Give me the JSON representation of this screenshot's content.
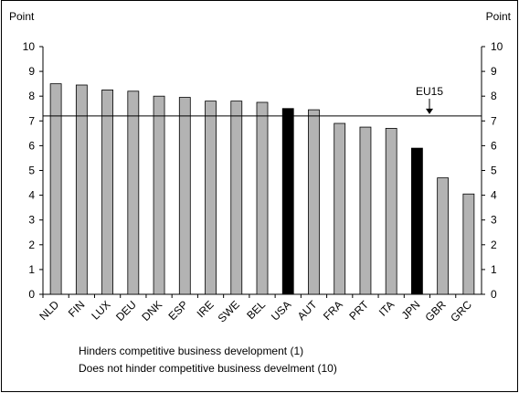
{
  "chart_data": {
    "type": "bar",
    "y_label": "Point",
    "y2_label": "Point",
    "categories": [
      "NLD",
      "FIN",
      "LUX",
      "DEU",
      "DNK",
      "ESP",
      "IRE",
      "SWE",
      "BEL",
      "USA",
      "AUT",
      "FRA",
      "PRT",
      "ITA",
      "JPN",
      "GBR",
      "GRC"
    ],
    "values": [
      8.5,
      8.45,
      8.25,
      8.2,
      8.0,
      7.95,
      7.8,
      7.8,
      7.75,
      7.5,
      7.45,
      6.9,
      6.75,
      6.7,
      5.9,
      4.7,
      4.05
    ],
    "colors": [
      "#b3b3b3",
      "#b3b3b3",
      "#b3b3b3",
      "#b3b3b3",
      "#b3b3b3",
      "#b3b3b3",
      "#b3b3b3",
      "#b3b3b3",
      "#b3b3b3",
      "#000000",
      "#b3b3b3",
      "#b3b3b3",
      "#b3b3b3",
      "#b3b3b3",
      "#000000",
      "#b3b3b3",
      "#b3b3b3"
    ],
    "ylim": [
      0,
      10
    ],
    "yticks": [
      0,
      1,
      2,
      3,
      4,
      5,
      6,
      7,
      8,
      9,
      10
    ],
    "y2lim": [
      0,
      10
    ],
    "y2ticks": [
      0,
      1,
      2,
      3,
      4,
      5,
      6,
      7,
      8,
      9,
      10
    ],
    "reference_line": {
      "value": 7.2,
      "label": "EU15"
    },
    "notes": [
      "Hinders competitive business development (1)",
      "Does not hinder competitive business develment (10)"
    ]
  }
}
